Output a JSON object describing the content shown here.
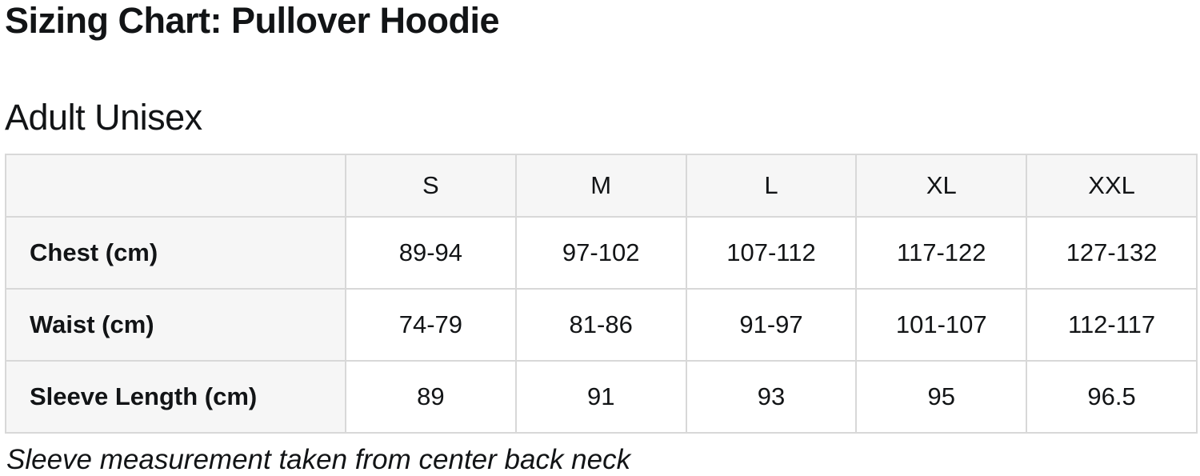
{
  "page": {
    "title": "Sizing Chart: Pullover Hoodie",
    "section_heading": "Adult Unisex",
    "footnote": "Sleeve measurement taken from center back neck"
  },
  "colors": {
    "background": "#ffffff",
    "text": "#121416",
    "table_border": "#d8d8d8",
    "header_and_label_cell_background": "#f6f6f6",
    "data_cell_background": "#ffffff"
  },
  "chart_data": {
    "type": "table",
    "title": "Sizing Chart: Pullover Hoodie",
    "subtitle": "Adult Unisex",
    "columns": [
      "",
      "S",
      "M",
      "L",
      "XL",
      "XXL"
    ],
    "rows": [
      {
        "label": "Chest (cm)",
        "values": [
          "89-94",
          "97-102",
          "107-112",
          "117-122",
          "127-132"
        ]
      },
      {
        "label": "Waist (cm)",
        "values": [
          "74-79",
          "81-86",
          "91-97",
          "101-107",
          "112-117"
        ]
      },
      {
        "label": "Sleeve Length (cm)",
        "values": [
          "89",
          "91",
          "93",
          "95",
          "96.5"
        ]
      }
    ],
    "annotations": [
      "Sleeve measurement taken from center back neck"
    ]
  }
}
